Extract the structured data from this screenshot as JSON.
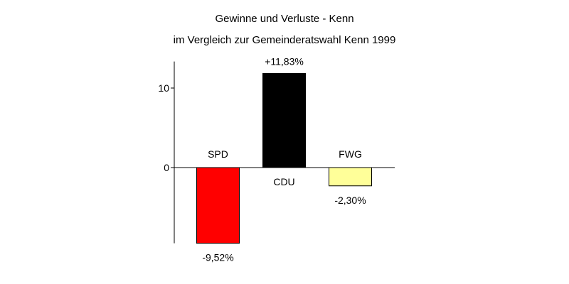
{
  "chart_data": {
    "type": "bar",
    "title": "Gewinne und Verluste - Kenn",
    "subtitle": "im Vergleich zur Gemeinderatswahl Kenn 1999",
    "categories": [
      "SPD",
      "CDU",
      "FWG"
    ],
    "values": [
      -9.52,
      11.83,
      -2.3
    ],
    "value_labels": [
      "-9,52%",
      "+11,83%",
      "-2,30%"
    ],
    "colors": [
      "#ff0000",
      "#000000",
      "#ffff99"
    ],
    "yticks": [
      0,
      10
    ],
    "ytick_labels": [
      "0",
      "10"
    ],
    "ylim": [
      -9.52,
      12.0
    ],
    "grid": false,
    "xlabel": "",
    "ylabel": ""
  }
}
